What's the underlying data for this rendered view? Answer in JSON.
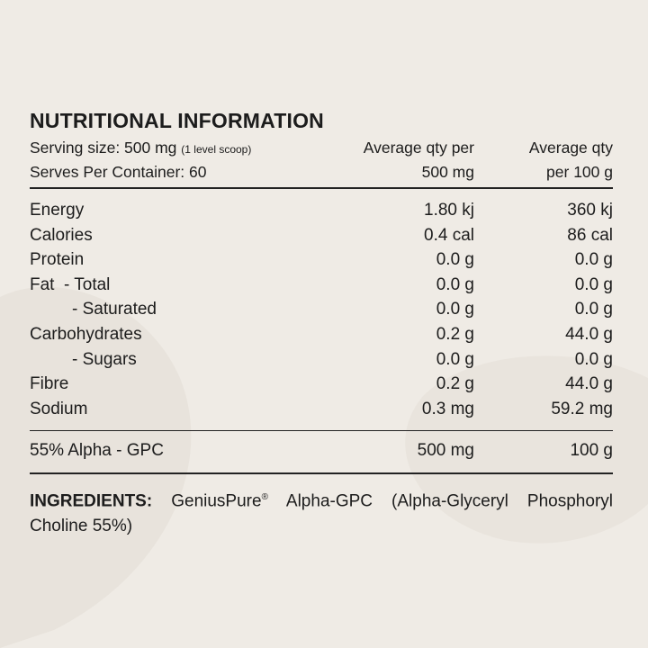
{
  "title": "NUTRITIONAL INFORMATION",
  "header": {
    "serving_size_label": "Serving size: 500 mg",
    "serving_size_note": "(1 level scoop)",
    "serves_per_container": "Serves Per Container: 60",
    "col1_line1": "Average qty per",
    "col1_line2": "500 mg",
    "col2_line1": "Average qty",
    "col2_line2": "per 100 g"
  },
  "rows": [
    {
      "label": "Energy",
      "per_serve": "1.80 kj",
      "per_100g": "360 kj"
    },
    {
      "label": "Calories",
      "per_serve": "0.4 cal",
      "per_100g": "86 cal"
    },
    {
      "label": "Protein",
      "per_serve": "0.0 g",
      "per_100g": "0.0 g"
    },
    {
      "label": "Fat  - Total",
      "per_serve": "0.0 g",
      "per_100g": "0.0 g"
    },
    {
      "label": "- Saturated",
      "per_serve": "0.0 g",
      "per_100g": "0.0 g"
    },
    {
      "label": "Carbohydrates",
      "per_serve": "0.2 g",
      "per_100g": "44.0 g"
    },
    {
      "label": "- Sugars",
      "per_serve": "0.0 g",
      "per_100g": "0.0 g"
    },
    {
      "label": "Fibre",
      "per_serve": "0.2 g",
      "per_100g": "44.0 g"
    },
    {
      "label": "Sodium",
      "per_serve": "0.3 mg",
      "per_100g": "59.2 mg"
    }
  ],
  "active": {
    "label": "55% Alpha - GPC",
    "per_serve": "500 mg",
    "per_100g": "100 g"
  },
  "ingredients": {
    "heading": "INGREDIENTS:",
    "brand": "GeniusPure",
    "reg_mark": "®",
    "text": " Alpha-GPC (Alpha-Glyceryl Phosphoryl Choline 55%)"
  },
  "colors": {
    "background": "#efebe5",
    "text": "#1c1c1c",
    "swirl": "#e7e2db"
  }
}
